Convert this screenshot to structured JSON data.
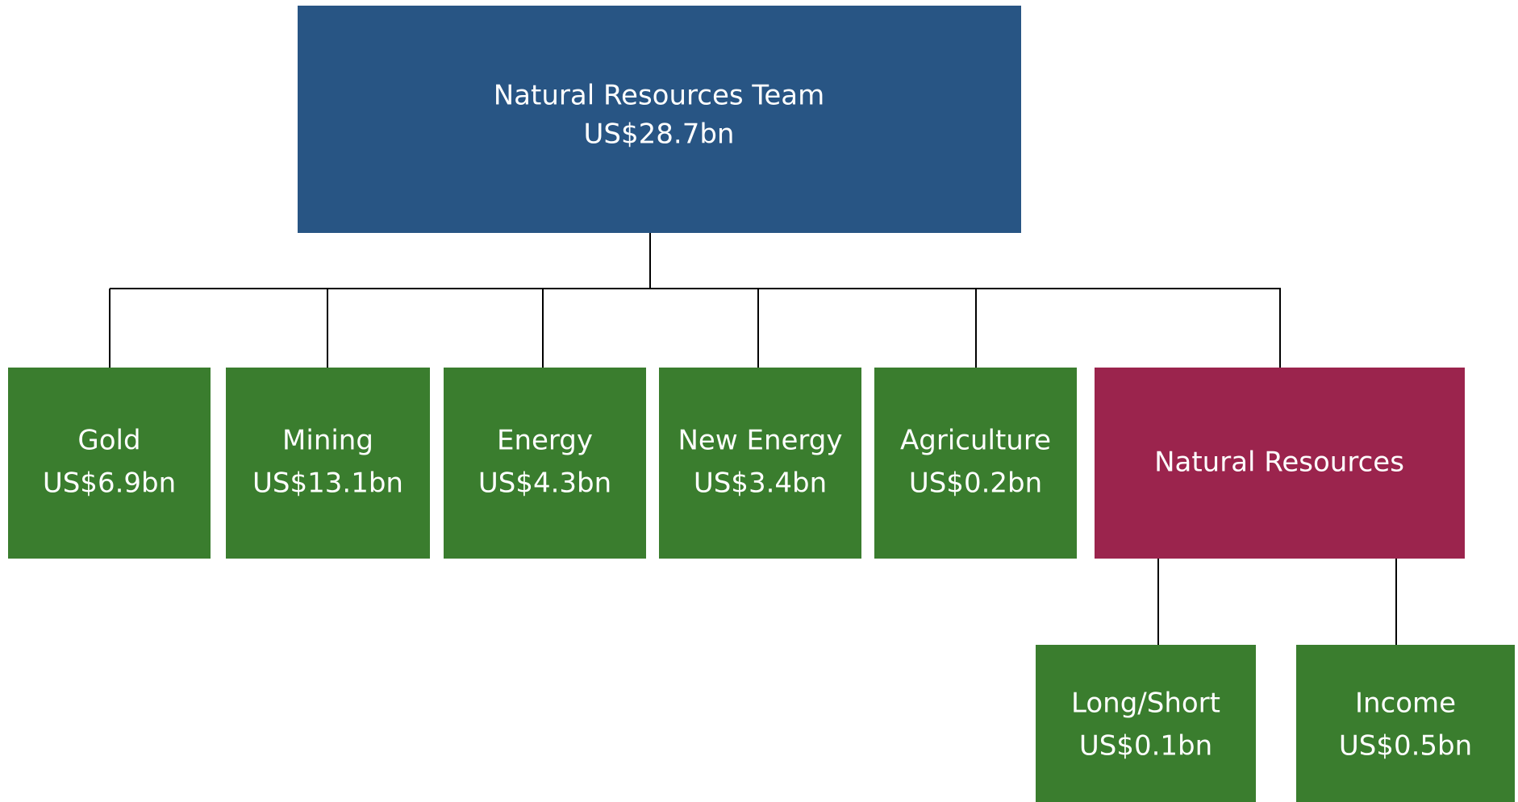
{
  "root": {
    "label": "Natural Resources Team",
    "value": "US$28.7bn"
  },
  "divisions": [
    {
      "label": "Gold",
      "value": "US$6.9bn"
    },
    {
      "label": "Mining",
      "value": "US$13.1bn"
    },
    {
      "label": "Energy",
      "value": "US$4.3bn"
    },
    {
      "label": "New Energy",
      "value": "US$3.4bn"
    },
    {
      "label": "Agriculture",
      "value": "US$0.2bn"
    }
  ],
  "natural_resources": {
    "label": "Natural Resources",
    "children": [
      {
        "label": "Long/Short",
        "value": "US$0.1bn"
      },
      {
        "label": "Income",
        "value": "US$0.5bn"
      }
    ]
  }
}
